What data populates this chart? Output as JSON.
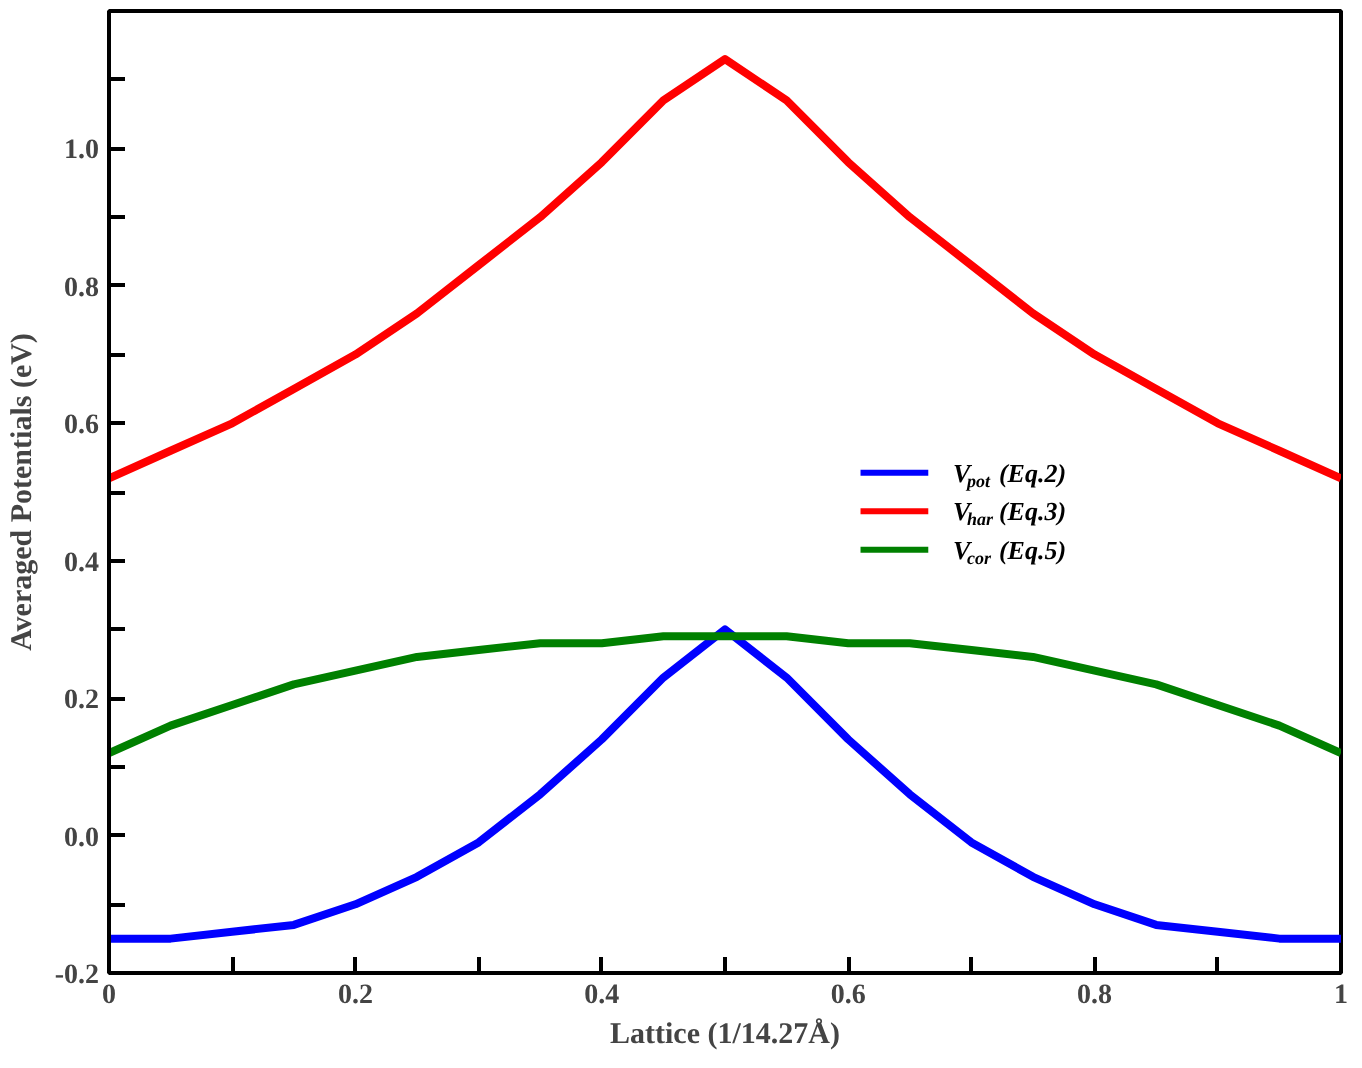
{
  "chart_data": {
    "type": "line",
    "xlabel": "Lattice (1/14.27Å)",
    "ylabel": "Averaged Potentials (eV)",
    "x": [
      0,
      0.05,
      0.1,
      0.15,
      0.2,
      0.25,
      0.3,
      0.35,
      0.4,
      0.45,
      0.5,
      0.55,
      0.6,
      0.65,
      0.7,
      0.75,
      0.8,
      0.85,
      0.9,
      0.95,
      1
    ],
    "series": [
      {
        "name": "V$_{pot}$(Eq.2)",
        "color": "#0000ff",
        "values": [
          -0.15,
          -0.15,
          -0.14,
          -0.13,
          -0.1,
          -0.06,
          -0.01,
          0.06,
          0.14,
          0.23,
          0.3,
          0.23,
          0.14,
          0.06,
          -0.01,
          -0.06,
          -0.1,
          -0.13,
          -0.14,
          -0.15,
          -0.15
        ]
      },
      {
        "name": "V$_{har}$(Eq.3)",
        "color": "#ff0000",
        "values": [
          0.52,
          0.56,
          0.6,
          0.65,
          0.7,
          0.76,
          0.83,
          0.9,
          0.98,
          1.07,
          1.13,
          1.07,
          0.98,
          0.9,
          0.83,
          0.76,
          0.7,
          0.65,
          0.6,
          0.56,
          0.52
        ]
      },
      {
        "name": "V$_{cor}$(Eq.5)",
        "color": "#008000",
        "values": [
          0.12,
          0.16,
          0.19,
          0.22,
          0.24,
          0.26,
          0.27,
          0.28,
          0.28,
          0.29,
          0.29,
          0.29,
          0.28,
          0.28,
          0.27,
          0.26,
          0.24,
          0.22,
          0.19,
          0.16,
          0.12
        ]
      }
    ],
    "xlim": [
      0,
      1
    ],
    "ylim": [
      -0.2,
      1.2
    ],
    "xticks": [
      0,
      {
        "value": 0.1,
        "label": null
      },
      0.2,
      {
        "value": 0.3,
        "label": null
      },
      0.4,
      {
        "value": 0.5,
        "label": null
      },
      0.6,
      {
        "value": 0.7,
        "label": null
      },
      0.8,
      {
        "value": 0.9,
        "label": null
      },
      1
    ],
    "yticks": [
      {
        "value": -0.2,
        "label": "-0.2"
      },
      {
        "value": -0.1,
        "label": null
      },
      {
        "value": 0,
        "label": "0.0"
      },
      {
        "value": 0.1,
        "label": null
      },
      0.2,
      {
        "value": 0.3,
        "label": null
      },
      0.4,
      {
        "value": 0.5,
        "label": null
      },
      0.6,
      {
        "value": 0.7,
        "label": null
      },
      0.8,
      {
        "value": 0.9,
        "label": null
      },
      {
        "value": 1,
        "label": "1.0"
      },
      {
        "value": 1.1,
        "label": null
      }
    ],
    "grid": false,
    "legend": "right",
    "line_style": "solid",
    "marker": "none"
  }
}
